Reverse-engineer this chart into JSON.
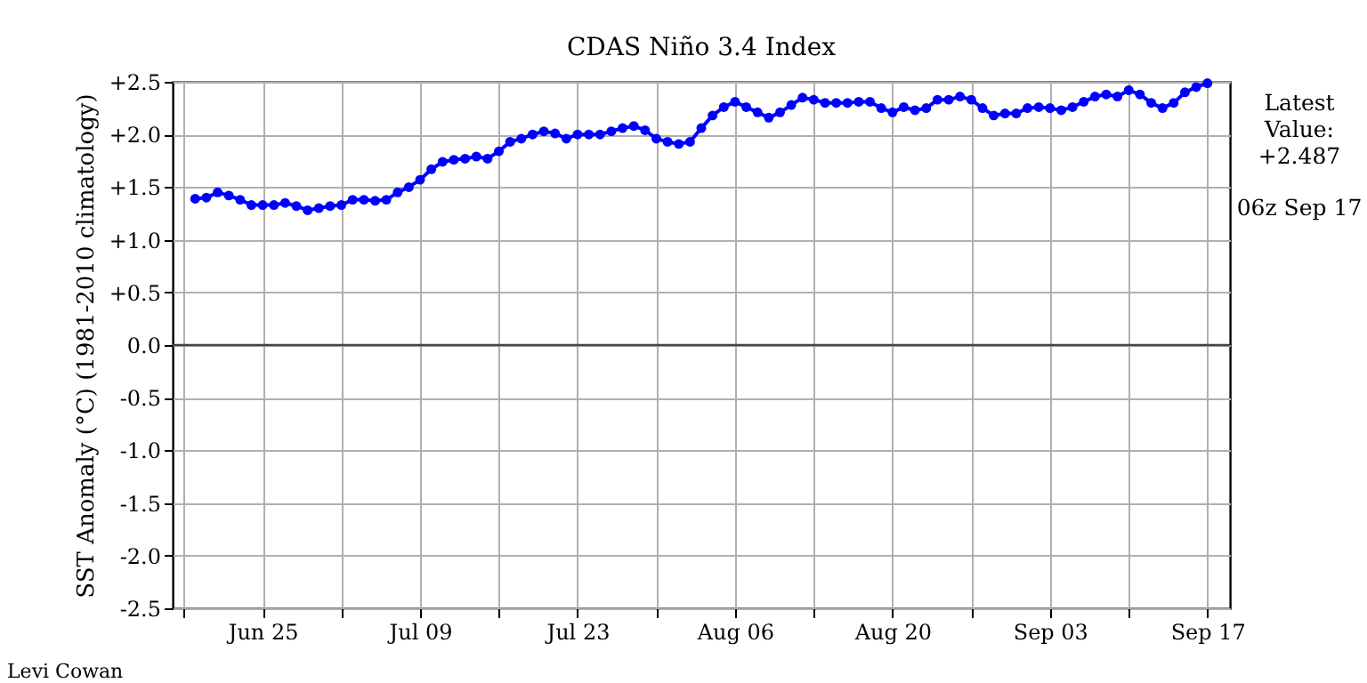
{
  "chart_data": {
    "type": "line",
    "title": "CDAS Niño 3.4 Index",
    "ylabel": "SST Anomaly (°C) (1981-2010 climatology)",
    "annotations": [
      "Latest Value: +2.487",
      "06z Sep 17",
      "Levi Cowan"
    ],
    "x": [
      "--06-19",
      "--06-20",
      "--06-21",
      "--06-22",
      "--06-23",
      "--06-24",
      "--06-25",
      "--06-26",
      "--06-27",
      "--06-28",
      "--06-29",
      "--06-30",
      "--07-01",
      "--07-02",
      "--07-03",
      "--07-04",
      "--07-05",
      "--07-06",
      "--07-07",
      "--07-08",
      "--07-09",
      "--07-10",
      "--07-11",
      "--07-12",
      "--07-13",
      "--07-14",
      "--07-15",
      "--07-16",
      "--07-17",
      "--07-18",
      "--07-19",
      "--07-20",
      "--07-21",
      "--07-22",
      "--07-23",
      "--07-24",
      "--07-25",
      "--07-26",
      "--07-27",
      "--07-28",
      "--07-29",
      "--07-30",
      "--07-31",
      "--08-01",
      "--08-02",
      "--08-03",
      "--08-04",
      "--08-05",
      "--08-06",
      "--08-07",
      "--08-08",
      "--08-09",
      "--08-10",
      "--08-11",
      "--08-12",
      "--08-13",
      "--08-14",
      "--08-15",
      "--08-16",
      "--08-17",
      "--08-18",
      "--08-19",
      "--08-20",
      "--08-21",
      "--08-22",
      "--08-23",
      "--08-24",
      "--08-25",
      "--08-26",
      "--08-27",
      "--08-28",
      "--08-29",
      "--08-30",
      "--08-31",
      "--09-01",
      "--09-02",
      "--09-03",
      "--09-04",
      "--09-05",
      "--09-06",
      "--09-07",
      "--09-08",
      "--09-09",
      "--09-10",
      "--09-11",
      "--09-12",
      "--09-13",
      "--09-14",
      "--09-15",
      "--09-16",
      "--09-17"
    ],
    "series": [
      {
        "color": "#0000ff",
        "values": [
          1.39,
          1.4,
          1.45,
          1.42,
          1.38,
          1.33,
          1.33,
          1.33,
          1.35,
          1.32,
          1.28,
          1.3,
          1.32,
          1.33,
          1.38,
          1.38,
          1.37,
          1.38,
          1.45,
          1.5,
          1.57,
          1.67,
          1.74,
          1.76,
          1.77,
          1.79,
          1.77,
          1.84,
          1.93,
          1.96,
          2.0,
          2.03,
          2.01,
          1.96,
          2.0,
          2.0,
          2.0,
          2.03,
          2.06,
          2.08,
          2.04,
          1.96,
          1.93,
          1.91,
          1.93,
          2.06,
          2.18,
          2.26,
          2.31,
          2.26,
          2.21,
          2.16,
          2.21,
          2.28,
          2.35,
          2.33,
          2.3,
          2.3,
          2.3,
          2.31,
          2.31,
          2.25,
          2.21,
          2.26,
          2.23,
          2.25,
          2.33,
          2.33,
          2.36,
          2.33,
          2.25,
          2.18,
          2.2,
          2.2,
          2.25,
          2.26,
          2.25,
          2.23,
          2.26,
          2.31,
          2.36,
          2.38,
          2.36,
          2.42,
          2.38,
          2.3,
          2.25,
          2.3,
          2.4,
          2.45,
          2.487
        ]
      }
    ],
    "marker": "circle",
    "line_style": "solid",
    "grid": true,
    "xlim": [
      "--06-17",
      "--09-19"
    ],
    "xticks": [
      {
        "value": "--06-18",
        "label": null
      },
      {
        "value": "--06-25",
        "label": "Jun 25"
      },
      {
        "value": "--07-02",
        "label": null
      },
      {
        "value": "--07-09",
        "label": "Jul 09"
      },
      {
        "value": "--07-16",
        "label": null
      },
      {
        "value": "--07-23",
        "label": "Jul 23"
      },
      {
        "value": "--07-30",
        "label": null
      },
      {
        "value": "--08-06",
        "label": "Aug 06"
      },
      {
        "value": "--08-13",
        "label": null
      },
      {
        "value": "--08-20",
        "label": "Aug 20"
      },
      {
        "value": "--08-27",
        "label": null
      },
      {
        "value": "--09-03",
        "label": "Sep 03"
      },
      {
        "value": "--09-10",
        "label": null
      },
      {
        "value": "--09-17",
        "label": "Sep 17"
      }
    ],
    "ylim": [
      -2.5,
      2.5
    ],
    "yticks": [
      {
        "value": -2.5,
        "label": "-2.5"
      },
      {
        "value": -2.0,
        "label": "-2.0"
      },
      {
        "value": -1.5,
        "label": "-1.5"
      },
      {
        "value": -1.0,
        "label": "-1.0"
      },
      {
        "value": -0.5,
        "label": "-0.5"
      },
      {
        "value": 0,
        "label": "0.0"
      },
      {
        "value": 0.5,
        "label": "+0.5"
      },
      {
        "value": 1.0,
        "label": "+1.0"
      },
      {
        "value": 1.5,
        "label": "+1.5"
      },
      {
        "value": 2.0,
        "label": "+2.0"
      },
      {
        "value": 2.5,
        "label": "+2.5"
      }
    ],
    "ref_lines": [
      {
        "axis": "y",
        "value": 0,
        "color": "#444444"
      }
    ]
  }
}
